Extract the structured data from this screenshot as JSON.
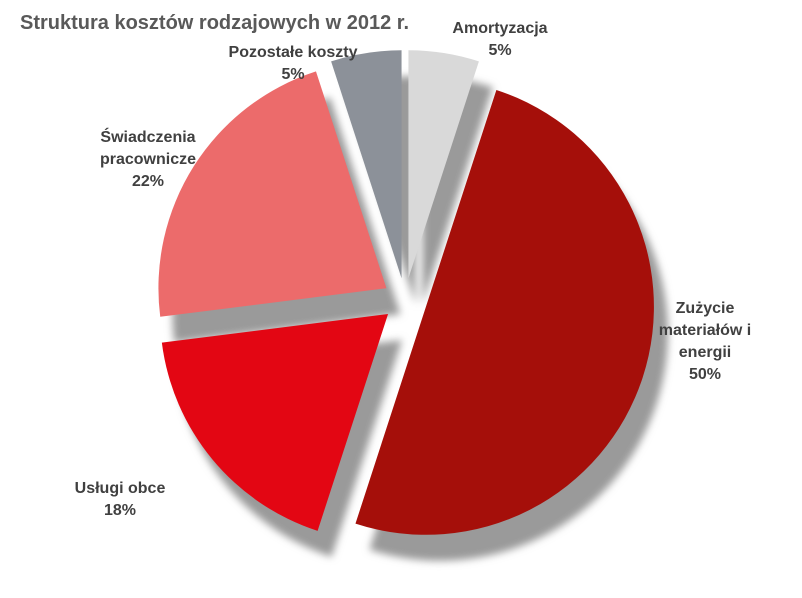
{
  "chart_data": {
    "type": "pie",
    "title": "Struktura kosztów rodzajowych w 2012 r.",
    "categories": [
      "Amortyzacja",
      "Zużycie materiałów i energii",
      "Usługi obce",
      "Świadczenia pracownicze",
      "Pozostałe koszty"
    ],
    "values": [
      5,
      50,
      18,
      22,
      5
    ],
    "value_labels": [
      "5%",
      "50%",
      "18%",
      "22%",
      "5%"
    ],
    "colors": [
      "#d9d9d9",
      "#a50f0a",
      "#e30613",
      "#ec6b6b",
      "#8c9199"
    ]
  }
}
